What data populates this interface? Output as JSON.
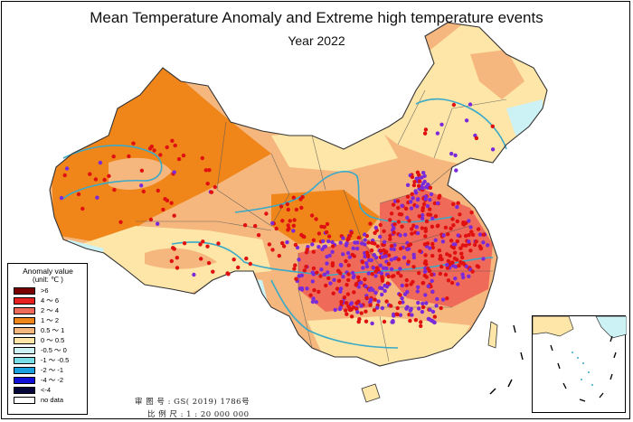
{
  "title": "Mean Temperature Anomaly and Extreme high temperature events",
  "subtitle": "Year 2022",
  "legend": {
    "title": "Anomaly value",
    "unit": "(unit: ℃ )",
    "items": [
      {
        "label": ">6",
        "color": "#7a0000"
      },
      {
        "label": "4 ～ 6",
        "color": "#e8201f"
      },
      {
        "label": "2 ～ 4",
        "color": "#f06a5a"
      },
      {
        "label": "1 ～ 2",
        "color": "#f0851a"
      },
      {
        "label": "0.5 ～ 1",
        "color": "#f5b77e"
      },
      {
        "label": "0 ～ 0.5",
        "color": "#fde6a8"
      },
      {
        "label": "-0.5 ～ 0",
        "color": "#cdf2f5"
      },
      {
        "label": "-1 ～ -0.5",
        "color": "#79dde8"
      },
      {
        "label": "-2 ～ -1",
        "color": "#1a9fe0"
      },
      {
        "label": "-4 ～ -2",
        "color": "#1010d8"
      },
      {
        "label": "<-4",
        "color": "#05053a"
      },
      {
        "label": "no data",
        "color": "#ffffff"
      }
    ]
  },
  "footer": {
    "approval": "审 图 号 : GS( 2019) 1786号",
    "scale": "比 例 尺 : 1 : 20 000 000"
  },
  "colors": {
    "event_red": "#e01010",
    "event_purple": "#7a2ad8",
    "river": "#3aa9c8",
    "border": "#555555"
  }
}
